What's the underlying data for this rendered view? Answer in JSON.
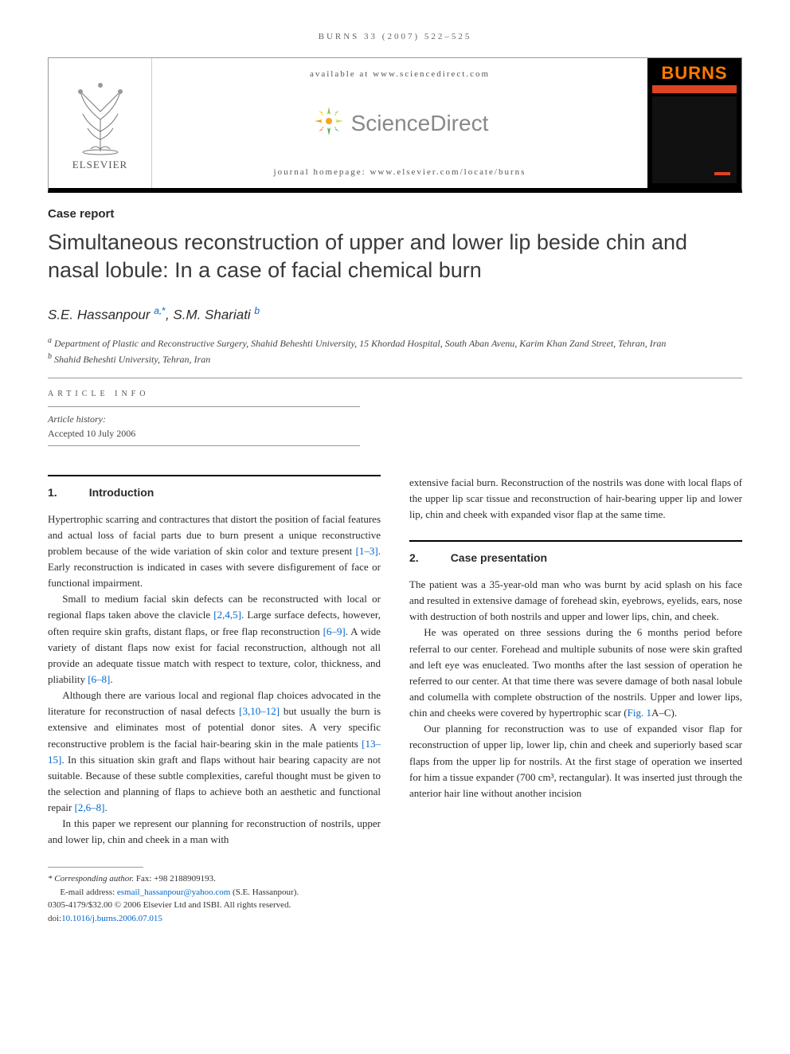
{
  "running_head": "BURNS 33 (2007) 522–525",
  "header": {
    "available_at": "available at www.sciencedirect.com",
    "sciencedirect": "ScienceDirect",
    "journal_homepage": "journal homepage: www.elsevier.com/locate/burns",
    "elsevier_label": "ELSEVIER",
    "cover_title": "BURNS"
  },
  "article_type": "Case report",
  "title": "Simultaneous reconstruction of upper and lower lip beside chin and nasal lobule: In a case of facial chemical burn",
  "authors_html": "S.E. Hassanpour <span class='aff-sup'>a,</span><span class='corr-sup'>*</span>, S.M. Shariati <span class='aff-sup'>b</span>",
  "affiliations": [
    {
      "label": "a",
      "text": "Department of Plastic and Reconstructive Surgery, Shahid Beheshti University, 15 Khordad Hospital, South Aban Avenu, Karim Khan Zand Street, Tehran, Iran"
    },
    {
      "label": "b",
      "text": "Shahid Beheshti University, Tehran, Iran"
    }
  ],
  "article_info_label": "ARTICLE INFO",
  "history": {
    "label": "Article history:",
    "accepted": "Accepted 10 July 2006"
  },
  "sections": {
    "intro": {
      "num": "1.",
      "title": "Introduction"
    },
    "case": {
      "num": "2.",
      "title": "Case presentation"
    }
  },
  "body": {
    "intro_p1": "Hypertrophic scarring and contractures that distort the position of facial features and actual loss of facial parts due to burn present a unique reconstructive problem because of the wide variation of skin color and texture present ",
    "intro_p1_cite": "[1–3]",
    "intro_p1_tail": ". Early reconstruction is indicated in cases with severe disfigurement of face or functional impairment.",
    "intro_p2a": "Small to medium facial skin defects can be reconstructed with local or regional flaps taken above the clavicle ",
    "intro_p2a_cite": "[2,4,5]",
    "intro_p2b": ". Large surface defects, however, often require skin grafts, distant flaps, or free flap reconstruction ",
    "intro_p2b_cite": "[6–9]",
    "intro_p2c": ". A wide variety of distant flaps now exist for facial reconstruction, although not all provide an adequate tissue match with respect to texture, color, thickness, and pliability ",
    "intro_p2c_cite": "[6–8]",
    "intro_p2c_tail": ".",
    "intro_p3a": "Although there are various local and regional flap choices advocated in the literature for reconstruction of nasal defects ",
    "intro_p3a_cite": "[3,10–12]",
    "intro_p3b": " but usually the burn is extensive and eliminates most of potential donor sites. A very specific reconstructive problem is the facial hair-bearing skin in the male patients ",
    "intro_p3b_cite": "[13–15]",
    "intro_p3c": ". In this situation skin graft and flaps without hair bearing capacity are not suitable. Because of these subtle complexities, careful thought must be given to the selection and planning of flaps to achieve both an aesthetic and functional repair ",
    "intro_p3c_cite": "[2,6–8]",
    "intro_p3c_tail": ".",
    "intro_p4": "In this paper we represent our planning for reconstruction of nostrils, upper and lower lip, chin and cheek in a man with",
    "col2_carry": "extensive facial burn. Reconstruction of the nostrils was done with local flaps of the upper lip scar tissue and reconstruction of hair-bearing upper lip and lower lip, chin and cheek with expanded visor flap at the same time.",
    "case_p1": "The patient was a 35-year-old man who was burnt by acid splash on his face and resulted in extensive damage of forehead skin, eyebrows, eyelids, ears, nose with destruction of both nostrils and upper and lower lips, chin, and cheek.",
    "case_p2a": "He was operated on three sessions during the 6 months period before referral to our center. Forehead and multiple subunits of nose were skin grafted and left eye was enucleated. Two months after the last session of operation he referred to our center. At that time there was severe damage of both nasal lobule and columella with complete obstruction of the nostrils. Upper and lower lips, chin and cheeks were covered by hypertrophic scar (",
    "case_p2_fig": "Fig. 1",
    "case_p2b": "A–C).",
    "case_p3": "Our planning for reconstruction was to use of expanded visor flap for reconstruction of upper lip, lower lip, chin and cheek and superiorly based scar flaps from the upper lip for nostrils. At the first stage of operation we inserted for him a tissue expander (700 cm³, rectangular). It was inserted just through the anterior hair line without another incision"
  },
  "footnotes": {
    "corr": "* Corresponding author. Fax: +98 2188909193.",
    "email_label": "E-mail address: ",
    "email": "esmail_hassanpour@yahoo.com",
    "email_tail": " (S.E. Hassanpour).",
    "copyright": "0305-4179/$32.00 © 2006 Elsevier Ltd and ISBI. All rights reserved.",
    "doi_label": "doi:",
    "doi": "10.1016/j.burns.2006.07.015"
  },
  "colors": {
    "link": "#0066cc",
    "cover_orange": "#ff7a00",
    "cover_red": "#d42"
  }
}
